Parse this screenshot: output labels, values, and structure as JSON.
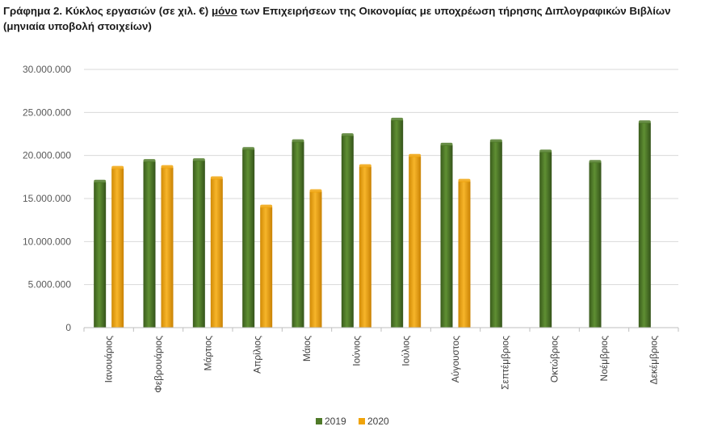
{
  "title": {
    "part1": "Γράφημα 2. Κύκλος εργασιών (σε χιλ. €) ",
    "underlined": "μόνο",
    "part2": " των Επιχειρήσεων της Οικονομίας με υποχρέωση τήρησης Διπλογραφικών Βιβλίων (μηνιαία υποβολή στοιχείων)"
  },
  "chart_data": {
    "type": "bar",
    "categories": [
      "Ιανουάριος",
      "Φεβρουάριος",
      "Μάρτιος",
      "Απρίλιος",
      "Μάιος",
      "Ιούνιος",
      "Ιούλιος",
      "Αύγουστος",
      "Σεπτέμβριος",
      "Οκτώβριος",
      "Νοέμβριος",
      "Δεκέμβριος"
    ],
    "series": [
      {
        "name": "2019",
        "color": "#4f7a28",
        "values": [
          16900000,
          19300000,
          19400000,
          20700000,
          21600000,
          22300000,
          24100000,
          21200000,
          21600000,
          20400000,
          19200000,
          23800000
        ]
      },
      {
        "name": "2020",
        "color": "#f0a30a",
        "values": [
          18500000,
          18600000,
          17300000,
          14000000,
          15800000,
          18700000,
          19900000,
          17000000,
          null,
          null,
          null,
          null
        ]
      }
    ],
    "yticks": [
      "0",
      "5.000.000",
      "10.000.000",
      "15.000.000",
      "20.000.000",
      "25.000.000",
      "30.000.000"
    ],
    "ylim": [
      0,
      30000000
    ],
    "grid": true,
    "legend": "bottom-center"
  }
}
